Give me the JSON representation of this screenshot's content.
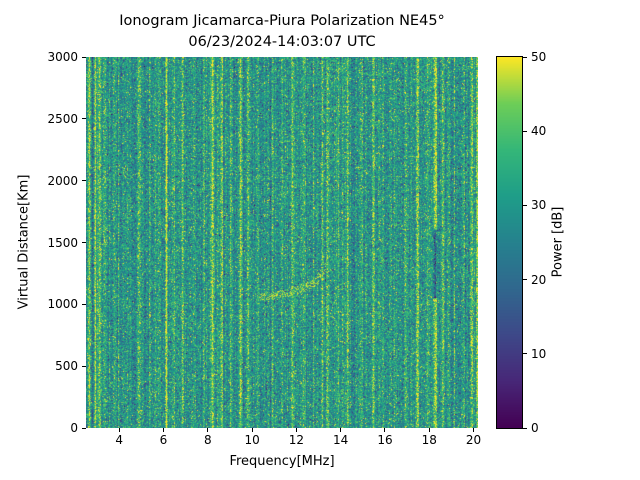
{
  "figure": {
    "title": "Ionogram Jicamarca-Piura Polarization NE45°",
    "subtitle": "06/23/2024-14:03:07 UTC"
  },
  "chart_data": {
    "type": "heatmap",
    "title": "Ionogram Jicamarca-Piura Polarization NE45°",
    "subtitle": "06/23/2024-14:03:07 UTC",
    "xlabel": "Frequency[MHz]",
    "ylabel": "Virtual Distance[Km]",
    "colorbar_label": "Power [dB]",
    "x_range_mhz": [
      2.5,
      20.2
    ],
    "y_range_km": [
      0,
      3000
    ],
    "power_range_db": [
      0,
      50
    ],
    "x_ticks": [
      4,
      6,
      8,
      10,
      12,
      14,
      16,
      18,
      20
    ],
    "y_ticks": [
      0,
      500,
      1000,
      1500,
      2000,
      2500,
      3000
    ],
    "colorbar_ticks": [
      0,
      10,
      20,
      30,
      40,
      50
    ],
    "colormap": "viridis",
    "colormap_anchors": [
      [
        0.0,
        "#440154"
      ],
      [
        0.125,
        "#482878"
      ],
      [
        0.25,
        "#3e4989"
      ],
      [
        0.375,
        "#31688e"
      ],
      [
        0.5,
        "#26828e"
      ],
      [
        0.625,
        "#1f9e89"
      ],
      [
        0.75,
        "#35b779"
      ],
      [
        0.875,
        "#6ece58"
      ],
      [
        1.0,
        "#fde725"
      ]
    ],
    "background_noise_db": {
      "mean": 29,
      "std": 7.5,
      "column_variation_db": 2.5
    },
    "rfi_stripes_mhz": [
      {
        "f": 2.62,
        "b": 20,
        "w": 1.5
      },
      {
        "f": 2.9,
        "b": 13,
        "w": 1
      },
      {
        "f": 3.1,
        "b": 18,
        "w": 1.5
      },
      {
        "f": 3.35,
        "b": 12,
        "w": 1
      },
      {
        "f": 3.75,
        "b": 8,
        "w": 1
      },
      {
        "f": 4.35,
        "b": 7,
        "w": 1
      },
      {
        "f": 4.9,
        "b": 16,
        "w": 1.5
      },
      {
        "f": 5.35,
        "b": 7,
        "w": 1
      },
      {
        "f": 5.8,
        "b": 8,
        "w": 1
      },
      {
        "f": 6.1,
        "b": 18,
        "w": 1.5
      },
      {
        "f": 6.45,
        "b": 9,
        "w": 1
      },
      {
        "f": 6.85,
        "b": 16,
        "w": 1.5
      },
      {
        "f": 7.35,
        "b": 8,
        "w": 1
      },
      {
        "f": 7.8,
        "b": 9,
        "w": 1
      },
      {
        "f": 8.2,
        "b": 18,
        "w": 1.5
      },
      {
        "f": 8.6,
        "b": 15,
        "w": 1.5
      },
      {
        "f": 9.0,
        "b": 8,
        "w": 1
      },
      {
        "f": 9.45,
        "b": 17,
        "w": 1.5
      },
      {
        "f": 9.8,
        "b": 12,
        "w": 1.5
      },
      {
        "f": 10.25,
        "b": 10,
        "w": 1
      },
      {
        "f": 10.9,
        "b": 8,
        "w": 1
      },
      {
        "f": 11.35,
        "b": 9,
        "w": 1
      },
      {
        "f": 11.8,
        "b": 16,
        "w": 1.5
      },
      {
        "f": 12.3,
        "b": 8,
        "w": 1
      },
      {
        "f": 12.75,
        "b": 9,
        "w": 1
      },
      {
        "f": 13.15,
        "b": 12,
        "w": 1
      },
      {
        "f": 13.4,
        "b": 16,
        "w": 1.5
      },
      {
        "f": 13.9,
        "b": 8,
        "w": 1
      },
      {
        "f": 14.3,
        "b": 15,
        "w": 1.5
      },
      {
        "f": 14.9,
        "b": 8,
        "w": 1
      },
      {
        "f": 15.45,
        "b": 16,
        "w": 1.5
      },
      {
        "f": 15.9,
        "b": 9,
        "w": 1
      },
      {
        "f": 16.4,
        "b": 8,
        "w": 1
      },
      {
        "f": 16.9,
        "b": 9,
        "w": 1
      },
      {
        "f": 17.45,
        "b": 16,
        "w": 1.5
      },
      {
        "f": 17.9,
        "b": 9,
        "w": 1
      },
      {
        "f": 18.25,
        "b": 20,
        "w": 2,
        "gap": [
          1050,
          1600
        ],
        "gap_delta": -14
      },
      {
        "f": 18.6,
        "b": 14,
        "w": 1.5
      },
      {
        "f": 19.1,
        "b": 8,
        "w": 1
      },
      {
        "f": 19.55,
        "b": 9,
        "w": 1
      },
      {
        "f": 19.9,
        "b": 18,
        "w": 1.5
      },
      {
        "f": 20.15,
        "b": 16,
        "w": 1.5
      }
    ],
    "echo_trace_km_vs_mhz": [
      [
        10.35,
        1055
      ],
      [
        10.7,
        1065
      ],
      [
        11.05,
        1075
      ],
      [
        11.4,
        1090
      ],
      [
        11.75,
        1105
      ],
      [
        12.05,
        1120
      ],
      [
        12.35,
        1140
      ],
      [
        12.6,
        1160
      ],
      [
        12.8,
        1180
      ],
      [
        12.95,
        1205
      ],
      [
        13.08,
        1235
      ],
      [
        13.18,
        1270
      ],
      [
        13.25,
        1310
      ]
    ]
  }
}
